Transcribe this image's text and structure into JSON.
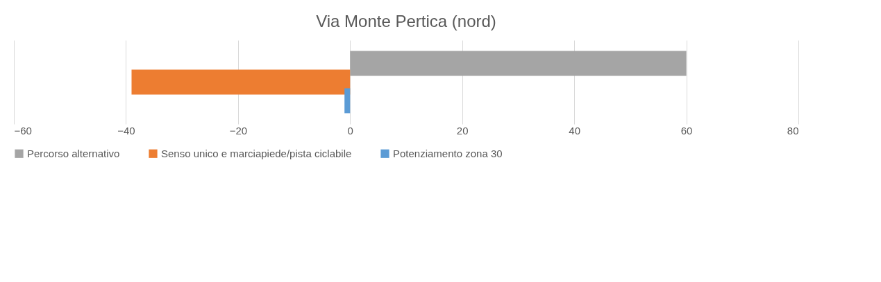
{
  "chart_data": {
    "type": "bar",
    "orientation": "horizontal",
    "title": "Via Monte Pertica (nord)",
    "categories": [
      null
    ],
    "series": [
      {
        "name": "Percorso alternativo",
        "color": "#a5a5a5",
        "values": [
          60
        ]
      },
      {
        "name": "Senso unico e marciapiede/pista ciclabile",
        "color": "#ed7d31",
        "values": [
          -39
        ]
      },
      {
        "name": "Potenziamento zona 30",
        "color": "#5b9bd5",
        "values": [
          -1
        ]
      }
    ],
    "xlim": [
      -60,
      80
    ],
    "xticks": [
      -60,
      -40,
      -20,
      0,
      20,
      40,
      60,
      80
    ],
    "grid": "x",
    "legend": "bottom"
  }
}
